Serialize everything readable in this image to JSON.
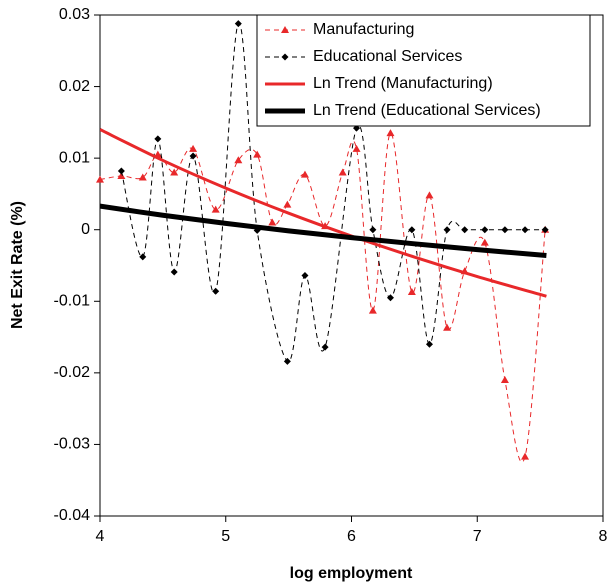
{
  "chart_data": {
    "type": "line",
    "x_label": "log employment",
    "y_label": "Net Exit Rate (%)",
    "xlim": [
      4,
      8
    ],
    "xticks": [
      4,
      5,
      6,
      7,
      8
    ],
    "ylim": [
      -0.04,
      0.03
    ],
    "yticks": [
      -0.04,
      -0.03,
      -0.02,
      -0.01,
      0,
      0.01,
      0.02,
      0.03
    ],
    "legend": "upper right",
    "series": [
      {
        "name": "Manufacturing",
        "color": "#e8282a",
        "dash": true,
        "marker": "triangle",
        "smooth": true,
        "x": [
          4.0,
          4.17,
          4.34,
          4.46,
          4.59,
          4.74,
          4.92,
          5.1,
          5.25,
          5.37,
          5.49,
          5.63,
          5.79,
          5.93,
          6.04,
          6.17,
          6.31,
          6.48,
          6.62,
          6.76,
          6.9,
          7.06,
          7.22,
          7.38,
          7.54
        ],
        "values": [
          0.007,
          0.0075,
          0.0073,
          0.0105,
          0.008,
          0.0113,
          0.0028,
          0.0097,
          0.0105,
          0.001,
          0.0035,
          0.0077,
          0.0005,
          0.008,
          0.0113,
          -0.0113,
          0.0135,
          -0.0087,
          0.0048,
          -0.0137,
          -0.0058,
          -0.0018,
          -0.021,
          -0.0317,
          0
        ]
      },
      {
        "name": "Educational Services",
        "color": "#000000",
        "dash": true,
        "marker": "diamond",
        "smooth": true,
        "x": [
          4.17,
          4.34,
          4.46,
          4.59,
          4.74,
          4.92,
          5.1,
          5.25,
          5.49,
          5.63,
          5.79,
          6.04,
          6.17,
          6.31,
          6.48,
          6.62,
          6.76,
          6.9,
          7.06,
          7.22,
          7.38,
          7.54
        ],
        "values": [
          0.0082,
          -0.0038,
          0.0127,
          -0.0059,
          0.0103,
          -0.0086,
          0.0288,
          -0.0001,
          -0.0184,
          -0.0064,
          -0.0164,
          0.0142,
          0,
          -0.0095,
          0,
          -0.016,
          0,
          0,
          0,
          0,
          0,
          0
        ]
      },
      {
        "name": "Ln Trend (Manufacturing)",
        "color": "#e8282a",
        "dash": false,
        "marker": null,
        "smooth": true,
        "width": 3,
        "x": [
          4,
          4.5,
          5,
          5.5,
          6,
          6.5,
          7,
          7.55
        ],
        "values": [
          0.014,
          0.00968,
          0.00581,
          0.00231,
          -0.00088,
          -0.00382,
          -0.00654,
          -0.0093
        ]
      },
      {
        "name": "Ln Trend (Educational Services)",
        "color": "#000000",
        "dash": false,
        "marker": null,
        "smooth": true,
        "width": 5,
        "x": [
          4,
          4.5,
          5,
          5.5,
          6,
          6.5,
          7,
          7.55
        ],
        "values": [
          0.0033,
          0.00202,
          0.00088,
          -0.00016,
          -0.0011,
          -0.00197,
          -0.00278,
          -0.0036
        ]
      }
    ]
  }
}
